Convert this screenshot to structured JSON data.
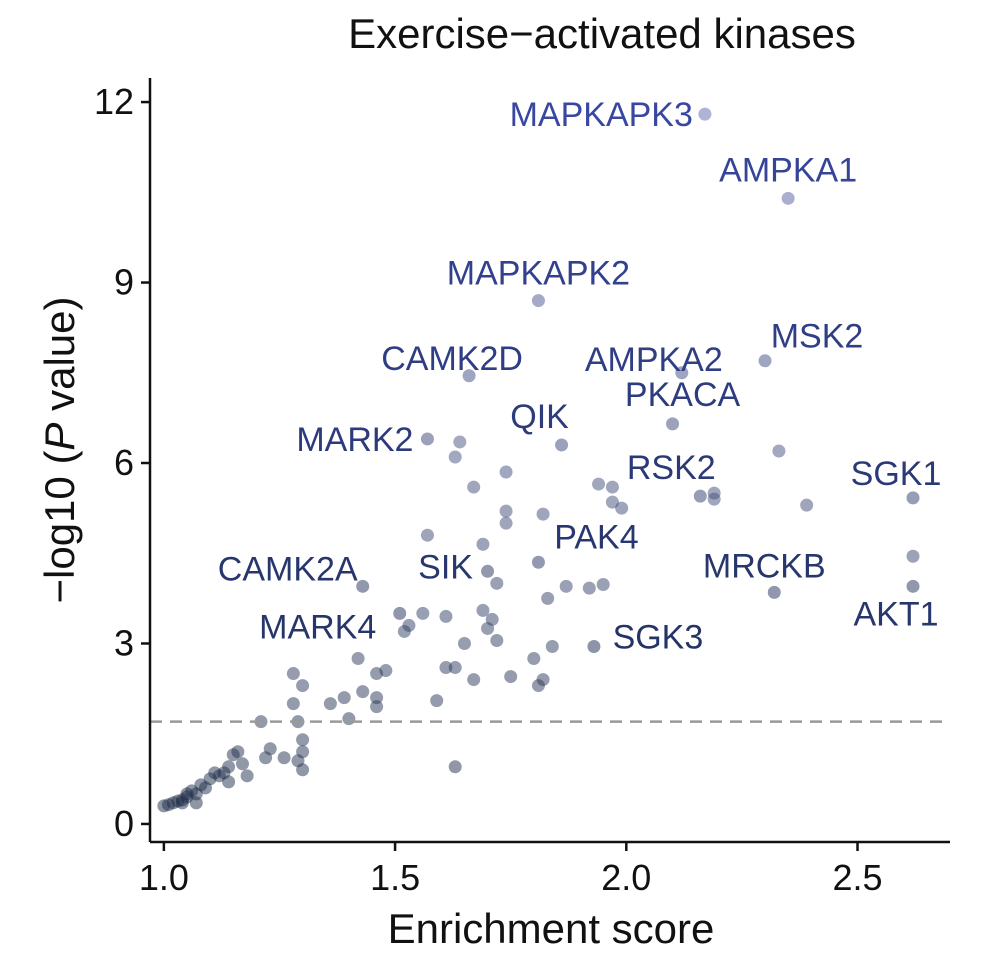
{
  "chart_data": {
    "type": "scatter",
    "title": "Exercise−activated kinases",
    "xlabel": "Enrichment score",
    "ylabel_prefix": "−log10 (",
    "ylabel_italic": "P",
    "ylabel_suffix": " value)",
    "xlim": [
      0.97,
      2.7
    ],
    "ylim": [
      -0.3,
      12.4
    ],
    "x_ticks": [
      1.0,
      1.5,
      2.0,
      2.5
    ],
    "x_tick_labels": [
      "1.0",
      "1.5",
      "2.0",
      "2.5"
    ],
    "y_ticks": [
      0,
      3,
      6,
      9,
      12
    ],
    "y_tick_labels": [
      "0",
      "3",
      "6",
      "9",
      "12"
    ],
    "threshold_line_y": 1.7,
    "colors": {
      "point_low": "#1c2a45",
      "point_high": "#6f78b8",
      "label_low": "#1e2e52",
      "label_high": "#3a47a3",
      "threshold": "#9a9a9a",
      "axis": "#111111"
    },
    "labeled_points": [
      {
        "name": "MAPKAPK3",
        "x": 2.17,
        "y": 11.8
      },
      {
        "name": "AMPKA1",
        "x": 2.35,
        "y": 10.4
      },
      {
        "name": "MAPKAPK2",
        "x": 1.81,
        "y": 8.7
      },
      {
        "name": "MSK2",
        "x": 2.3,
        "y": 7.7
      },
      {
        "name": "AMPKA2",
        "x": 2.12,
        "y": 7.5
      },
      {
        "name": "CAMK2D",
        "x": 1.66,
        "y": 7.45
      },
      {
        "name": "PKACA",
        "x": 2.1,
        "y": 6.65
      },
      {
        "name": "MARK2",
        "x": 1.57,
        "y": 6.4
      },
      {
        "name": "QIK",
        "x": 1.86,
        "y": 6.3
      },
      {
        "name": "RSK2",
        "x": 2.16,
        "y": 5.45
      },
      {
        "name": "SGK1",
        "x": 2.62,
        "y": 5.42
      },
      {
        "name": "PAK4",
        "x": 1.81,
        "y": 4.35
      },
      {
        "name": "SIK",
        "x": 1.7,
        "y": 4.2
      },
      {
        "name": "CAMK2A",
        "x": 1.43,
        "y": 3.95
      },
      {
        "name": "MRCKB",
        "x": 2.32,
        "y": 3.85
      },
      {
        "name": "AKT1",
        "x": 2.62,
        "y": 3.95
      },
      {
        "name": "MARK4",
        "x": 1.51,
        "y": 3.5
      },
      {
        "name": "SGK3",
        "x": 1.93,
        "y": 2.95
      }
    ],
    "other_points": [
      [
        1.63,
        6.1
      ],
      [
        1.64,
        6.35
      ],
      [
        1.67,
        5.6
      ],
      [
        1.74,
        5.85
      ],
      [
        1.74,
        5.2
      ],
      [
        1.74,
        5.0
      ],
      [
        1.82,
        5.15
      ],
      [
        1.94,
        5.65
      ],
      [
        1.97,
        5.6
      ],
      [
        1.97,
        5.35
      ],
      [
        1.99,
        5.25
      ],
      [
        2.19,
        5.5
      ],
      [
        2.19,
        5.4
      ],
      [
        2.33,
        6.2
      ],
      [
        2.39,
        5.3
      ],
      [
        2.62,
        4.45
      ],
      [
        1.57,
        4.8
      ],
      [
        1.69,
        4.65
      ],
      [
        1.72,
        4.0
      ],
      [
        1.87,
        3.95
      ],
      [
        1.92,
        3.92
      ],
      [
        1.95,
        3.98
      ],
      [
        1.83,
        3.75
      ],
      [
        1.69,
        3.55
      ],
      [
        1.71,
        3.4
      ],
      [
        1.61,
        3.45
      ],
      [
        1.56,
        3.5
      ],
      [
        1.53,
        3.3
      ],
      [
        1.52,
        3.2
      ],
      [
        1.65,
        3.0
      ],
      [
        1.72,
        3.05
      ],
      [
        1.7,
        3.25
      ],
      [
        1.84,
        2.95
      ],
      [
        1.8,
        2.75
      ],
      [
        1.61,
        2.6
      ],
      [
        1.63,
        2.6
      ],
      [
        1.67,
        2.4
      ],
      [
        1.75,
        2.45
      ],
      [
        1.81,
        2.3
      ],
      [
        1.82,
        2.4
      ],
      [
        1.42,
        2.75
      ],
      [
        1.46,
        2.5
      ],
      [
        1.48,
        2.55
      ],
      [
        1.43,
        2.2
      ],
      [
        1.46,
        2.1
      ],
      [
        1.39,
        2.1
      ],
      [
        1.36,
        2.0
      ],
      [
        1.4,
        1.75
      ],
      [
        1.46,
        1.95
      ],
      [
        1.59,
        2.05
      ],
      [
        1.28,
        2.5
      ],
      [
        1.3,
        2.3
      ],
      [
        1.28,
        2.0
      ],
      [
        1.29,
        1.7
      ],
      [
        1.3,
        1.4
      ],
      [
        1.21,
        1.7
      ],
      [
        1.23,
        1.25
      ],
      [
        1.26,
        1.1
      ],
      [
        1.29,
        1.05
      ],
      [
        1.3,
        1.2
      ],
      [
        1.3,
        0.9
      ],
      [
        1.22,
        1.1
      ],
      [
        1.16,
        1.2
      ],
      [
        1.15,
        1.15
      ],
      [
        1.17,
        1.0
      ],
      [
        1.14,
        0.95
      ],
      [
        1.13,
        0.85
      ],
      [
        1.18,
        0.8
      ],
      [
        1.11,
        0.85
      ],
      [
        1.12,
        0.8
      ],
      [
        1.1,
        0.75
      ],
      [
        1.14,
        0.7
      ],
      [
        1.08,
        0.65
      ],
      [
        1.06,
        0.55
      ],
      [
        1.07,
        0.5
      ],
      [
        1.05,
        0.5
      ],
      [
        1.05,
        0.45
      ],
      [
        1.04,
        0.4
      ],
      [
        1.03,
        0.38
      ],
      [
        1.02,
        0.35
      ],
      [
        1.01,
        0.32
      ],
      [
        1.0,
        0.3
      ],
      [
        1.04,
        0.35
      ],
      [
        1.07,
        0.35
      ],
      [
        1.09,
        0.6
      ],
      [
        1.63,
        0.95
      ]
    ]
  }
}
